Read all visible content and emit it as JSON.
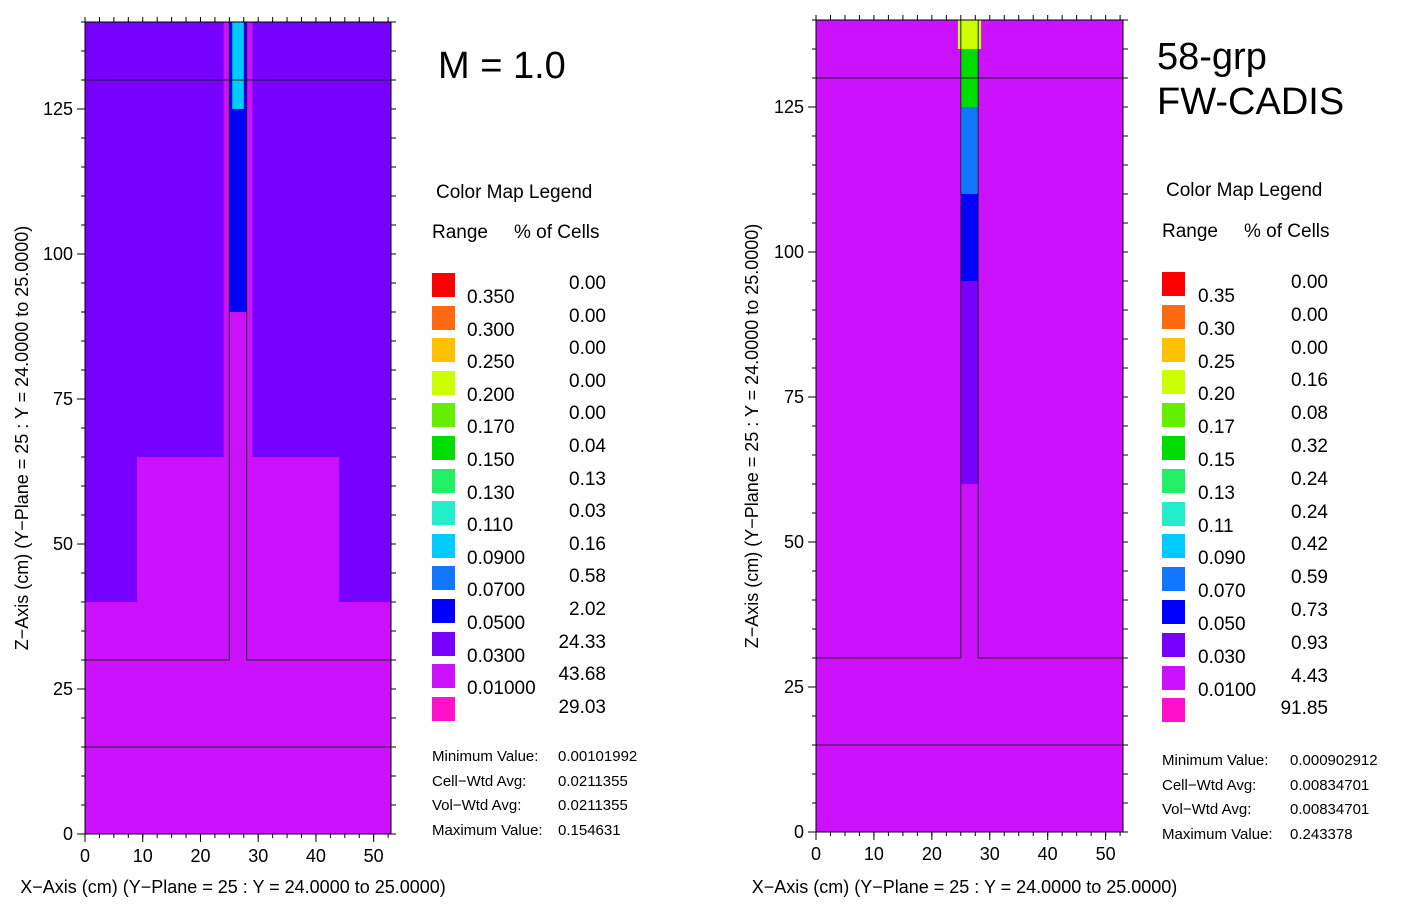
{
  "chart_data": [
    {
      "type": "heatmap",
      "annotation": "M = 1.0",
      "xlabel": "X−Axis (cm) (Y−Plane = 25 : Y = 24.0000 to 25.0000)",
      "ylabel": "Z−Axis (cm) (Y−Plane = 25 : Y = 24.0000 to 25.0000)",
      "xlim": [
        0,
        53
      ],
      "ylim": [
        0,
        140
      ],
      "xticks": [
        "0",
        "10",
        "20",
        "30",
        "40",
        "50"
      ],
      "yticks": [
        "0",
        "25",
        "50",
        "75",
        "100",
        "125"
      ],
      "regions": [
        {
          "z": [
            0,
            140
          ],
          "x": [
            0,
            53
          ],
          "color_bin": "0.01000"
        },
        {
          "z": [
            40,
            140
          ],
          "x": [
            0,
            9
          ],
          "color_bin": "0.0300"
        },
        {
          "z": [
            40,
            140
          ],
          "x": [
            44,
            53
          ],
          "color_bin": "0.0300"
        },
        {
          "z": [
            65,
            140
          ],
          "x": [
            9,
            24
          ],
          "color_bin": "0.0300"
        },
        {
          "z": [
            65,
            140
          ],
          "x": [
            29,
            44
          ],
          "color_bin": "0.0300"
        },
        {
          "z": [
            90,
            140
          ],
          "x": [
            25,
            28
          ],
          "color_bin": "0.0500"
        },
        {
          "z": [
            125,
            140
          ],
          "x": [
            25.5,
            27.5
          ],
          "color_bin": "0.0900"
        }
      ],
      "legend": {
        "title": "Color Map Legend",
        "range_header": "Range",
        "pct_header": "% of Cells",
        "bins": [
          {
            "color": "#ff0000",
            "range": "0.350",
            "pct": "0.00"
          },
          {
            "color": "#ff6a10",
            "range": "0.300",
            "pct": "0.00"
          },
          {
            "color": "#ffc000",
            "range": "0.250",
            "pct": "0.00"
          },
          {
            "color": "#ccff00",
            "range": "0.200",
            "pct": "0.00"
          },
          {
            "color": "#66ee00",
            "range": "0.170",
            "pct": "0.00"
          },
          {
            "color": "#00dd00",
            "range": "0.150",
            "pct": "0.04"
          },
          {
            "color": "#22ee66",
            "range": "0.130",
            "pct": "0.13"
          },
          {
            "color": "#22eecc",
            "range": "0.110",
            "pct": "0.03"
          },
          {
            "color": "#00ccff",
            "range": "0.0900",
            "pct": "0.16"
          },
          {
            "color": "#1177ff",
            "range": "0.0700",
            "pct": "0.58"
          },
          {
            "color": "#0000ff",
            "range": "0.0500",
            "pct": "2.02"
          },
          {
            "color": "#7700ff",
            "range": "0.0300",
            "pct": "24.33"
          },
          {
            "color": "#cc11ff",
            "range": "0.01000",
            "pct": "43.68"
          },
          {
            "color": "#ff11cc",
            "range": "",
            "pct": "29.03"
          }
        ]
      },
      "stats": [
        {
          "label": "Minimum Value:",
          "value": "0.00101992"
        },
        {
          "label": "Cell−Wtd Avg:",
          "value": "0.0211355"
        },
        {
          "label": "Vol−Wtd Avg:",
          "value": "0.0211355"
        },
        {
          "label": "Maximum Value:",
          "value": "0.154631"
        }
      ]
    },
    {
      "type": "heatmap",
      "annotation": "58-grp\nFW-CADIS",
      "annotation_lines": [
        "58-grp",
        "FW-CADIS"
      ],
      "xlabel": "X−Axis (cm) (Y−Plane = 25 : Y = 24.0000 to 25.0000)",
      "ylabel": "Z−Axis (cm) (Y−Plane = 25 : Y = 24.0000 to 25.0000)",
      "xlim": [
        0,
        53
      ],
      "ylim": [
        0,
        140
      ],
      "xticks": [
        "0",
        "10",
        "20",
        "30",
        "40",
        "50"
      ],
      "yticks": [
        "0",
        "25",
        "50",
        "75",
        "100",
        "125"
      ],
      "regions": [
        {
          "z": [
            0,
            140
          ],
          "x": [
            0,
            53
          ],
          "color_bin": "0.0100"
        },
        {
          "z": [
            60,
            140
          ],
          "x": [
            25,
            28
          ],
          "color_bin": "0.030"
        },
        {
          "z": [
            95,
            140
          ],
          "x": [
            25,
            28
          ],
          "color_bin": "0.050"
        },
        {
          "z": [
            110,
            140
          ],
          "x": [
            25,
            28
          ],
          "color_bin": "0.070"
        },
        {
          "z": [
            125,
            140
          ],
          "x": [
            25,
            28
          ],
          "color_bin": "0.15"
        },
        {
          "z": [
            135,
            140
          ],
          "x": [
            24.5,
            28.5
          ],
          "color_bin": "0.20"
        }
      ],
      "legend": {
        "title": "Color Map Legend",
        "range_header": "Range",
        "pct_header": "% of Cells",
        "bins": [
          {
            "color": "#ff0000",
            "range": "0.35",
            "pct": "0.00"
          },
          {
            "color": "#ff6a10",
            "range": "0.30",
            "pct": "0.00"
          },
          {
            "color": "#ffc000",
            "range": "0.25",
            "pct": "0.00"
          },
          {
            "color": "#ccff00",
            "range": "0.20",
            "pct": "0.16"
          },
          {
            "color": "#66ee00",
            "range": "0.17",
            "pct": "0.08"
          },
          {
            "color": "#00dd00",
            "range": "0.15",
            "pct": "0.32"
          },
          {
            "color": "#22ee66",
            "range": "0.13",
            "pct": "0.24"
          },
          {
            "color": "#22eecc",
            "range": "0.11",
            "pct": "0.24"
          },
          {
            "color": "#00ccff",
            "range": "0.090",
            "pct": "0.42"
          },
          {
            "color": "#1177ff",
            "range": "0.070",
            "pct": "0.59"
          },
          {
            "color": "#0000ff",
            "range": "0.050",
            "pct": "0.73"
          },
          {
            "color": "#7700ff",
            "range": "0.030",
            "pct": "0.93"
          },
          {
            "color": "#cc11ff",
            "range": "0.0100",
            "pct": "4.43"
          },
          {
            "color": "#ff11cc",
            "range": "",
            "pct": "91.85"
          }
        ]
      },
      "stats": [
        {
          "label": "Minimum Value:",
          "value": "0.000902912"
        },
        {
          "label": "Cell−Wtd Avg:",
          "value": "0.00834701"
        },
        {
          "label": "Vol−Wtd Avg:",
          "value": "0.00834701"
        },
        {
          "label": "Maximum Value:",
          "value": "0.243378"
        }
      ]
    }
  ]
}
